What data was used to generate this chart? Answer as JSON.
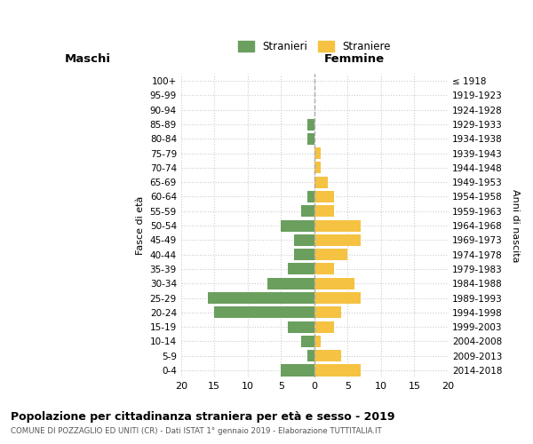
{
  "age_groups": [
    "0-4",
    "5-9",
    "10-14",
    "15-19",
    "20-24",
    "25-29",
    "30-34",
    "35-39",
    "40-44",
    "45-49",
    "50-54",
    "55-59",
    "60-64",
    "65-69",
    "70-74",
    "75-79",
    "80-84",
    "85-89",
    "90-94",
    "95-99",
    "100+"
  ],
  "birth_years": [
    "2014-2018",
    "2009-2013",
    "2004-2008",
    "1999-2003",
    "1994-1998",
    "1989-1993",
    "1984-1988",
    "1979-1983",
    "1974-1978",
    "1969-1973",
    "1964-1968",
    "1959-1963",
    "1954-1958",
    "1949-1953",
    "1944-1948",
    "1939-1943",
    "1934-1938",
    "1929-1933",
    "1924-1928",
    "1919-1923",
    "≤ 1918"
  ],
  "males": [
    5,
    1,
    2,
    4,
    15,
    16,
    7,
    4,
    3,
    3,
    5,
    2,
    1,
    0,
    0,
    0,
    1,
    1,
    0,
    0,
    0
  ],
  "females": [
    7,
    4,
    1,
    3,
    4,
    7,
    6,
    3,
    5,
    7,
    7,
    3,
    3,
    2,
    1,
    1,
    0,
    0,
    0,
    0,
    0
  ],
  "male_color": "#6a9f5e",
  "female_color": "#f5c242",
  "title": "Popolazione per cittadinanza straniera per età e sesso - 2019",
  "subtitle": "COMUNE DI POZZAGLIO ED UNITI (CR) - Dati ISTAT 1° gennaio 2019 - Elaborazione TUTTITALIA.IT",
  "ylabel_left": "Fasce di età",
  "ylabel_right": "Anni di nascita",
  "xlabel_left": "Maschi",
  "xlabel_right": "Femmine",
  "legend_male": "Stranieri",
  "legend_female": "Straniere",
  "xlim": 20,
  "background_color": "#ffffff",
  "grid_color": "#cccccc"
}
